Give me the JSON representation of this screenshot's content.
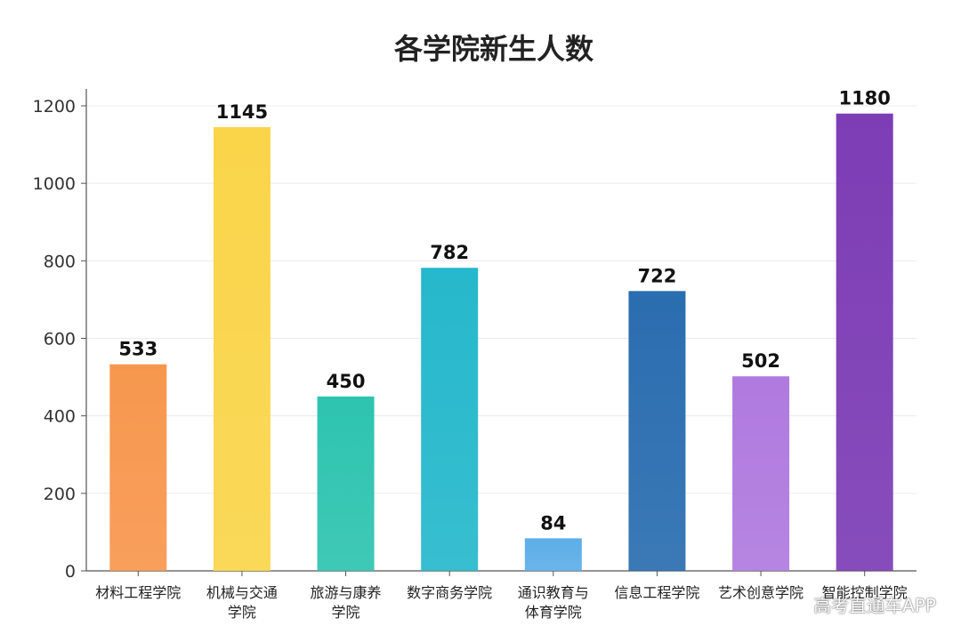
{
  "chart_data": {
    "type": "bar",
    "title": "各学院新生人数",
    "xlabel": "",
    "ylabel": "",
    "categories": [
      [
        "材料工程学院"
      ],
      [
        "机械与交通",
        "学院"
      ],
      [
        "旅游与康养",
        "学院"
      ],
      [
        "数字商务学院"
      ],
      [
        "通识教育与",
        "体育学院"
      ],
      [
        "信息工程学院"
      ],
      [
        "艺术创意学院"
      ],
      [
        "智能控制学院"
      ]
    ],
    "values": [
      533,
      1145,
      450,
      782,
      84,
      722,
      502,
      1180
    ],
    "colors": [
      "#F7974E",
      "#FAD54A",
      "#2EC4B0",
      "#26B8CC",
      "#5DAEE8",
      "#2A6DB0",
      "#B07ADF",
      "#7D3DB5"
    ],
    "ylim": [
      0,
      1200
    ],
    "yticks": [
      0,
      200,
      400,
      600,
      800,
      1000,
      1200
    ],
    "grid": true
  },
  "watermark": "高考直通车APP"
}
